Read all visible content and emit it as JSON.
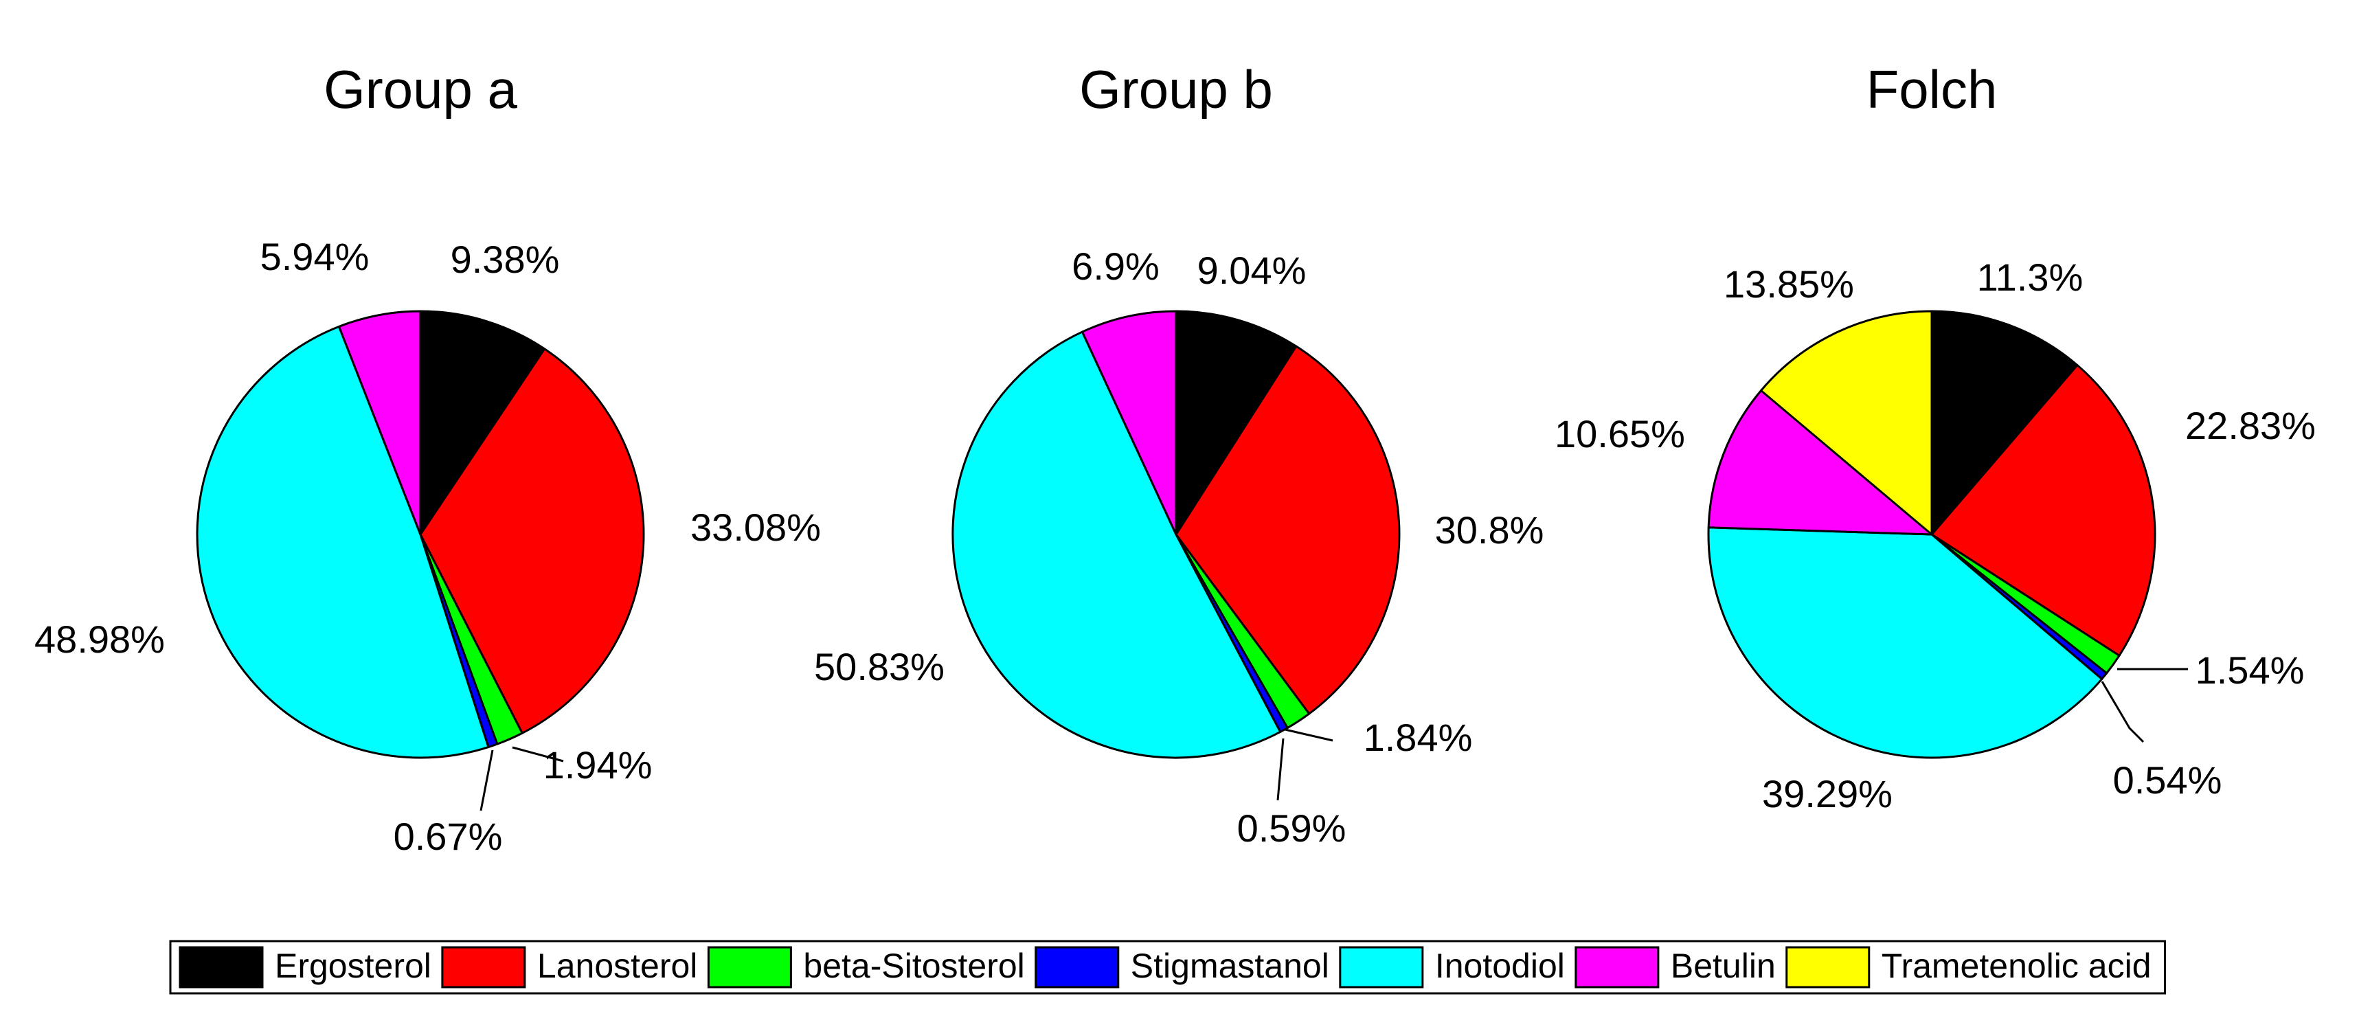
{
  "chart_data": {
    "type": "pie",
    "legend": {
      "placement": "bottom",
      "entries": [
        {
          "name": "Ergosterol",
          "color": "#000000"
        },
        {
          "name": "Lanosterol",
          "color": "#ff0000"
        },
        {
          "name": "beta-Sitosterol",
          "color": "#00ff00"
        },
        {
          "name": "Stigmastanol",
          "color": "#0000ff"
        },
        {
          "name": "Inotodiol",
          "color": "#00ffff"
        },
        {
          "name": "Betulin",
          "color": "#ff00ff"
        },
        {
          "name": "Trametenolic acid",
          "color": "#ffff00"
        }
      ]
    },
    "charts": [
      {
        "title": "Group a",
        "slices": [
          {
            "name": "Ergosterol",
            "value": 9.38,
            "label": "9.38%"
          },
          {
            "name": "Lanosterol",
            "value": 33.08,
            "label": "33.08%"
          },
          {
            "name": "beta-Sitosterol",
            "value": 1.94,
            "label": "1.94%"
          },
          {
            "name": "Stigmastanol",
            "value": 0.67,
            "label": "0.67%"
          },
          {
            "name": "Inotodiol",
            "value": 48.98,
            "label": "48.98%"
          },
          {
            "name": "Betulin",
            "value": 5.94,
            "label": "5.94%"
          }
        ]
      },
      {
        "title": "Group b",
        "slices": [
          {
            "name": "Ergosterol",
            "value": 9.04,
            "label": "9.04%"
          },
          {
            "name": "Lanosterol",
            "value": 30.8,
            "label": "30.8%"
          },
          {
            "name": "beta-Sitosterol",
            "value": 1.84,
            "label": "1.84%"
          },
          {
            "name": "Stigmastanol",
            "value": 0.59,
            "label": "0.59%"
          },
          {
            "name": "Inotodiol",
            "value": 50.83,
            "label": "50.83%"
          },
          {
            "name": "Betulin",
            "value": 6.9,
            "label": "6.9%"
          }
        ]
      },
      {
        "title": "Folch",
        "slices": [
          {
            "name": "Ergosterol",
            "value": 11.3,
            "label": "11.3%"
          },
          {
            "name": "Lanosterol",
            "value": 22.83,
            "label": "22.83%"
          },
          {
            "name": "beta-Sitosterol",
            "value": 1.54,
            "label": "1.54%"
          },
          {
            "name": "Stigmastanol",
            "value": 0.54,
            "label": "0.54%"
          },
          {
            "name": "Inotodiol",
            "value": 39.29,
            "label": "39.29%"
          },
          {
            "name": "Betulin",
            "value": 10.65,
            "label": "10.65%"
          },
          {
            "name": "Trametenolic acid",
            "value": 13.85,
            "label": "13.85%"
          }
        ]
      }
    ]
  }
}
